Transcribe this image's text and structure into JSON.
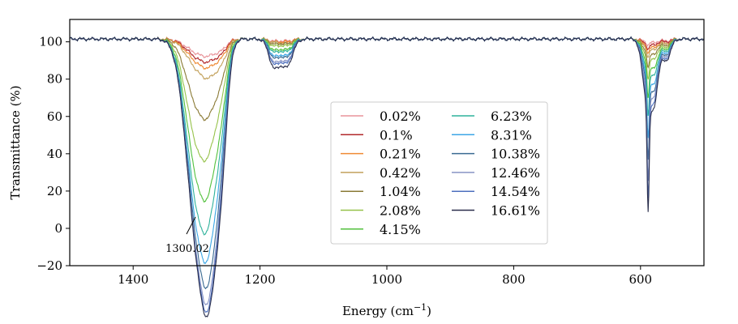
{
  "chart_data": {
    "type": "line",
    "xlabel": "Energy (cm",
    "xlabel_sup": "−1",
    "xlabel_close": ")",
    "ylabel": "Transmittance (%)",
    "xlim": [
      1500,
      500
    ],
    "ylim": [
      -20,
      112
    ],
    "x_ticks": [
      1400,
      1200,
      1000,
      800,
      600
    ],
    "y_ticks": [
      -20,
      0,
      20,
      40,
      60,
      80,
      100
    ],
    "x_tick_labels": [
      "1400",
      "1200",
      "1000",
      "800",
      "600"
    ],
    "y_tick_labels": [
      "−20",
      "0",
      "20",
      "40",
      "60",
      "80",
      "100"
    ],
    "grid": false,
    "legend_position": "center",
    "legend_columns": 2,
    "annotation": {
      "text": "1300.02",
      "x": 1300.02,
      "y": 5
    },
    "peaks": [
      {
        "center": 1300,
        "sigma": 17
      },
      {
        "center": 1278,
        "sigma": 13
      },
      {
        "center": 1260,
        "sigma": 9
      },
      {
        "center": 1178,
        "sigma": 8
      },
      {
        "center": 1158,
        "sigma": 9
      },
      {
        "center": 590,
        "sigma": 7
      },
      {
        "center": 588,
        "sigma": 1.6
      },
      {
        "center": 578,
        "sigma": 6
      },
      {
        "center": 560,
        "sigma": 7
      }
    ],
    "series": [
      {
        "name": "0.02%",
        "color": "#e8949a",
        "minima": [
          95,
          96,
          98,
          100.5,
          100.5,
          100,
          100,
          100,
          100.5
        ]
      },
      {
        "name": "0.1%",
        "color": "#b2282b",
        "minima": [
          93,
          94,
          97,
          100,
          100,
          99,
          99,
          99,
          100
        ]
      },
      {
        "name": "0.21%",
        "color": "#ef8a34",
        "minima": [
          91,
          92,
          96,
          100,
          100,
          98,
          98,
          98,
          99
        ]
      },
      {
        "name": "0.42%",
        "color": "#c2a15c",
        "minima": [
          88,
          88,
          94,
          100,
          99,
          97,
          97,
          97,
          99
        ]
      },
      {
        "name": "1.04%",
        "color": "#8a7a35",
        "minima": [
          70,
          77,
          90,
          99,
          99,
          95,
          94,
          95,
          98
        ]
      },
      {
        "name": "2.08%",
        "color": "#96c24a",
        "minima": [
          52,
          66,
          86,
          98,
          98,
          93,
          90,
          93,
          97
        ]
      },
      {
        "name": "4.15%",
        "color": "#52c03c",
        "minima": [
          37,
          53,
          80,
          96,
          96,
          90,
          84,
          89,
          96
        ]
      },
      {
        "name": "6.23%",
        "color": "#2fb29b",
        "minima": [
          24,
          43,
          76,
          95,
          95,
          87,
          78,
          86,
          95
        ]
      },
      {
        "name": "8.31%",
        "color": "#3ba6e6",
        "minima": [
          16,
          31,
          72,
          93,
          93,
          84,
          70,
          82,
          94
        ]
      },
      {
        "name": "10.38%",
        "color": "#3a6a92",
        "minima": [
          11,
          19,
          69,
          92,
          92,
          81,
          62,
          79,
          93
        ]
      },
      {
        "name": "12.46%",
        "color": "#8893c5",
        "minima": [
          7,
          12,
          66,
          90,
          90,
          77,
          55,
          77,
          92
        ]
      },
      {
        "name": "14.54%",
        "color": "#4d6fbe",
        "minima": [
          5,
          9,
          63,
          89,
          89,
          73,
          50,
          75,
          91
        ]
      },
      {
        "name": "16.61%",
        "color": "#2a2e4c",
        "minima": [
          4,
          7,
          60,
          87,
          87,
          70,
          46,
          73,
          90
        ]
      }
    ]
  }
}
